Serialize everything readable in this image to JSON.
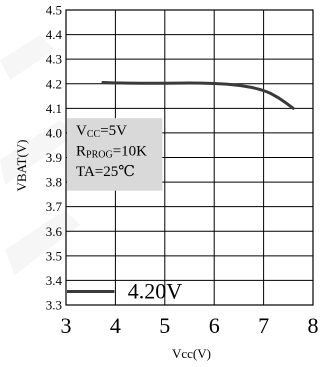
{
  "chart_data": {
    "type": "line",
    "title": "",
    "xlabel": "Vcc(V)",
    "ylabel": "VBAT(V)",
    "xlim": [
      3,
      8
    ],
    "ylim": [
      3.3,
      4.5
    ],
    "x_ticks": [
      "3",
      "4",
      "5",
      "6",
      "7",
      "8"
    ],
    "y_ticks": [
      "3.3",
      "3.4",
      "3.5",
      "3.6",
      "3.7",
      "3.8",
      "3.9",
      "4.0",
      "4.1",
      "4.2",
      "4.3",
      "4.4",
      "4.5"
    ],
    "grid": true,
    "series": [
      {
        "name": "4.20V",
        "x": [
          3.75,
          4.0,
          4.5,
          5.0,
          5.5,
          6.0,
          6.5,
          7.0,
          7.3,
          7.6
        ],
        "y": [
          4.205,
          4.203,
          4.202,
          4.202,
          4.203,
          4.202,
          4.195,
          4.175,
          4.145,
          4.1
        ],
        "color": "#3a3a3a"
      }
    ],
    "annotation": {
      "lines": [
        {
          "main": "V",
          "sub": "CC",
          "rest": "=5V"
        },
        {
          "main": "R",
          "sub": "PROG",
          "rest": "=10K"
        },
        {
          "main": "TA=25℃",
          "sub": "",
          "rest": ""
        }
      ],
      "background": "#d9d9d9"
    },
    "legend": {
      "placement": "bottom-left",
      "label": "4.20V"
    }
  }
}
